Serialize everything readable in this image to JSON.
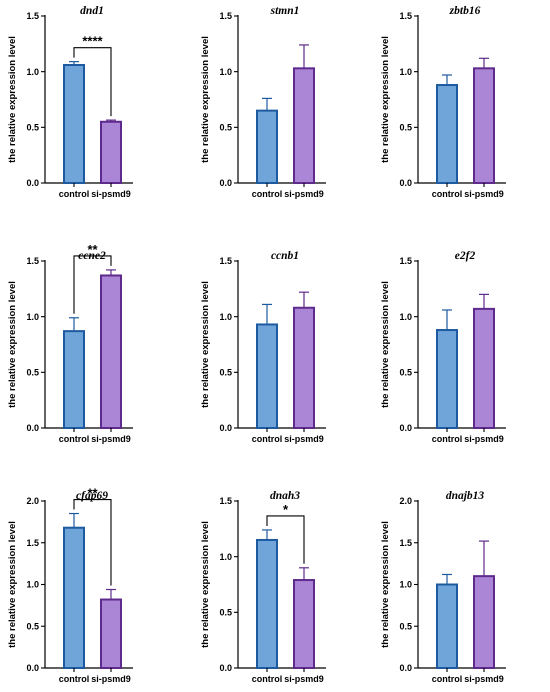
{
  "chart_data": [
    {
      "type": "bar",
      "title": "dnd1",
      "ylabel": "the relative expression level",
      "categories": [
        "control",
        "si-psmd9"
      ],
      "values": [
        1.06,
        0.55
      ],
      "errors": [
        0.03,
        0.015
      ],
      "ylim": [
        0,
        1.5
      ],
      "yticks": [
        "0.0",
        "0.5",
        "1.0",
        "1.5"
      ],
      "significance": "****"
    },
    {
      "type": "bar",
      "title": "stmn1",
      "ylabel": "the relative expression level",
      "categories": [
        "control",
        "si-psmd9"
      ],
      "values": [
        0.65,
        1.03
      ],
      "errors": [
        0.11,
        0.21
      ],
      "ylim": [
        0,
        1.5
      ],
      "yticks": [
        "0.0",
        "0.5",
        "1.0",
        "1.5"
      ],
      "significance": ""
    },
    {
      "type": "bar",
      "title": "zbtb16",
      "ylabel": "the relative expression level",
      "categories": [
        "control",
        "si-psmd9"
      ],
      "values": [
        0.88,
        1.03
      ],
      "errors": [
        0.09,
        0.09
      ],
      "ylim": [
        0,
        1.5
      ],
      "yticks": [
        "0.0",
        "0.5",
        "1.0",
        "1.5"
      ],
      "significance": ""
    },
    {
      "type": "bar",
      "title": "ccne2",
      "ylabel": "the relative expression level",
      "categories": [
        "control",
        "si-psmd9"
      ],
      "values": [
        0.87,
        1.37
      ],
      "errors": [
        0.12,
        0.05
      ],
      "ylim": [
        0,
        1.5
      ],
      "yticks": [
        "0.0",
        "0.5",
        "1.0",
        "1.5"
      ],
      "significance": "**"
    },
    {
      "type": "bar",
      "title": "ccnb1",
      "ylabel": "the relative expression level",
      "categories": [
        "control",
        "si-psmd9"
      ],
      "values": [
        0.93,
        1.08
      ],
      "errors": [
        0.18,
        0.14
      ],
      "ylim": [
        0,
        1.5
      ],
      "yticks": [
        "0.0",
        "0.5",
        "1.0",
        "1.5"
      ],
      "significance": ""
    },
    {
      "type": "bar",
      "title": "e2f2",
      "ylabel": "the relative expression level",
      "categories": [
        "control",
        "si-psmd9"
      ],
      "values": [
        0.88,
        1.07
      ],
      "errors": [
        0.18,
        0.13
      ],
      "ylim": [
        0,
        1.5
      ],
      "yticks": [
        "0.0",
        "0.5",
        "1.0",
        "1.5"
      ],
      "significance": ""
    },
    {
      "type": "bar",
      "title": "cfap69",
      "ylabel": "the relative expression level",
      "categories": [
        "control",
        "si-psmd9"
      ],
      "values": [
        1.68,
        0.82
      ],
      "errors": [
        0.17,
        0.12
      ],
      "ylim": [
        0,
        2.0
      ],
      "yticks": [
        "0.0",
        "0.5",
        "1.0",
        "1.5",
        "2.0"
      ],
      "significance": "**"
    },
    {
      "type": "bar",
      "title": "dnah3",
      "ylabel": "the relative expression level",
      "categories": [
        "control",
        "si-psmd9"
      ],
      "values": [
        1.15,
        0.79
      ],
      "errors": [
        0.09,
        0.11
      ],
      "ylim": [
        0,
        1.5
      ],
      "yticks": [
        "0.0",
        "0.5",
        "1.0",
        "1.5"
      ],
      "significance": "*"
    },
    {
      "type": "bar",
      "title": "dnajb13",
      "ylabel": "the relative expression level",
      "categories": [
        "control",
        "si-psmd9"
      ],
      "values": [
        1.0,
        1.1
      ],
      "errors": [
        0.12,
        0.42
      ],
      "ylim": [
        0,
        2.0
      ],
      "yticks": [
        "0.0",
        "0.5",
        "1.0",
        "1.5",
        "2.0"
      ],
      "significance": ""
    }
  ],
  "colors": {
    "control_fill": "#6fa5d9",
    "control_edge": "#1e5aa0",
    "treat_fill": "#ac86d6",
    "treat_edge": "#5e2a8c",
    "axis": "#000000"
  }
}
